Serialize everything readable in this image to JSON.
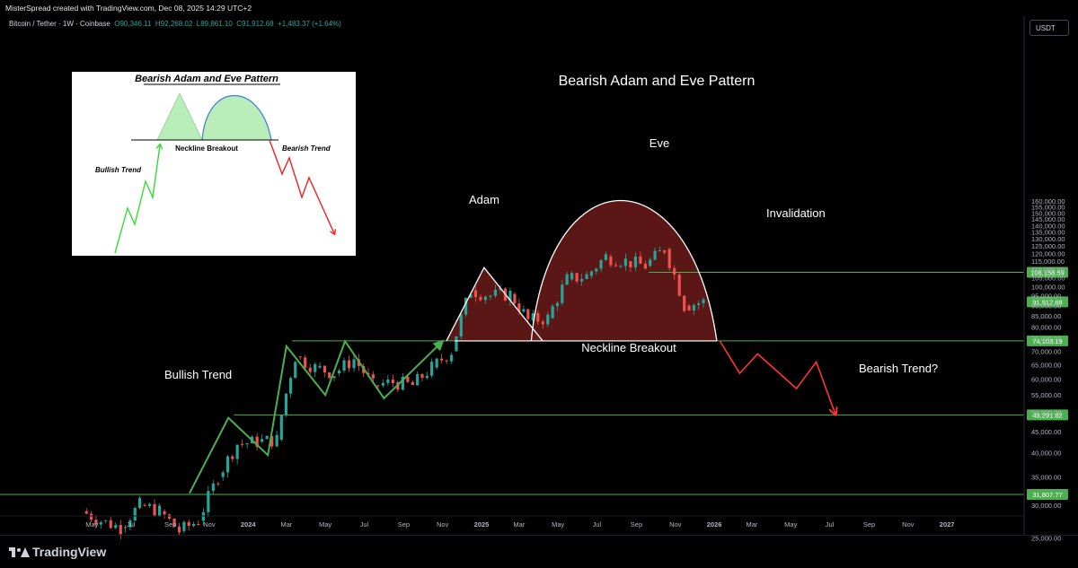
{
  "header": {
    "credit": "MisterSpread created with TradingView.com, Dec 08, 2025 14:29 UTC+2",
    "symbol": "Bitcoin / Tether · 1W · Coinbase",
    "open": "O90,346.11",
    "high": "H92,268.02",
    "low": "L89,861.10",
    "close": "C91,912.68",
    "change": "+1,483.37 (+1.64%)",
    "currency": "USDT"
  },
  "footer": {
    "brand": "TradingView"
  },
  "colors": {
    "background": "#000000",
    "bull": "#26a69a",
    "bear": "#ef5350",
    "green_line": "#4caf50",
    "pattern_fill": "#6b1a1a",
    "label_green": "#4caf50",
    "arrow_red": "#ff3333"
  },
  "chart_data": {
    "type": "line",
    "title": "Bearish Adam and Eve Pattern",
    "y_axis": {
      "ticks": [
        "160,000.00",
        "155,000.00",
        "150,000.00",
        "145,000.00",
        "140,000.00",
        "135,000.00",
        "130,000.00",
        "125,000.00",
        "120,000.00",
        "115,000.00",
        "110,000.00",
        "105,000.00",
        "100,000.00",
        "95,000.00",
        "90,000.00",
        "85,000.00",
        "80,000.00",
        "75,000.00",
        "70,000.00",
        "65,000.00",
        "60,000.00",
        "55,000.00",
        "50,000.00",
        "45,000.00",
        "40,000.00",
        "35,000.00",
        "30,000.00",
        "25,000.00"
      ],
      "tick_values": [
        160000,
        155000,
        150000,
        145000,
        140000,
        135000,
        130000,
        125000,
        120000,
        115000,
        110000,
        105000,
        100000,
        95000,
        90000,
        85000,
        80000,
        75000,
        70000,
        65000,
        60000,
        55000,
        50000,
        45000,
        40000,
        35000,
        30000,
        25000
      ],
      "log_scale": true
    },
    "x_axis": {
      "ticks": [
        "May",
        "Jul",
        "Sep",
        "Nov",
        "2024",
        "Mar",
        "May",
        "Jul",
        "Sep",
        "Nov",
        "2025",
        "Mar",
        "May",
        "Jul",
        "Sep",
        "Nov",
        "2026",
        "Mar",
        "May",
        "Jul",
        "Sep",
        "Nov",
        "2027"
      ],
      "tick_dates": [
        "2023-05",
        "2023-07",
        "2023-09",
        "2023-11",
        "2024-01",
        "2024-03",
        "2024-05",
        "2024-07",
        "2024-09",
        "2024-11",
        "2025-01",
        "2025-03",
        "2025-05",
        "2025-07",
        "2025-09",
        "2025-11",
        "2026-01",
        "2026-03",
        "2026-05",
        "2026-07",
        "2026-09",
        "2026-11",
        "2027-01"
      ]
    },
    "levels": [
      {
        "label": "108,158.59",
        "value": 108158.59
      },
      {
        "label": "91,912.68",
        "value": 91912.68
      },
      {
        "label": "74,103.19",
        "value": 74103.19
      },
      {
        "label": "49,291.82",
        "value": 49291.82
      },
      {
        "label": "31,807.77",
        "value": 31807.77
      }
    ],
    "annotations": {
      "adam": "Adam",
      "eve": "Eve",
      "invalidation": "Invalidation",
      "neckline": "Neckline Breakout",
      "bullish": "Bullish Trend",
      "bearish": "Bearish Trend?"
    },
    "weekly_close_path": [
      [
        "2023-04",
        29000
      ],
      [
        "2023-05",
        27500
      ],
      [
        "2023-06",
        26500
      ],
      [
        "2023-07",
        30000
      ],
      [
        "2023-08",
        29000
      ],
      [
        "2023-09",
        26000
      ],
      [
        "2023-10",
        27500
      ],
      [
        "2023-11",
        35000
      ],
      [
        "2023-12",
        42000
      ],
      [
        "2024-01",
        42500
      ],
      [
        "2024-02",
        43000
      ],
      [
        "2024-03",
        68000
      ],
      [
        "2024-04",
        64000
      ],
      [
        "2024-05",
        62000
      ],
      [
        "2024-06",
        67000
      ],
      [
        "2024-07",
        58000
      ],
      [
        "2024-08",
        59000
      ],
      [
        "2024-09",
        58000
      ],
      [
        "2024-10",
        64000
      ],
      [
        "2024-11",
        70000
      ],
      [
        "2024-12",
        98000
      ],
      [
        "2025-01",
        95000
      ],
      [
        "2025-02",
        96000
      ],
      [
        "2025-03",
        83000
      ],
      [
        "2025-04",
        84000
      ],
      [
        "2025-05",
        104000
      ],
      [
        "2025-06",
        106000
      ],
      [
        "2025-07",
        118000
      ],
      [
        "2025-08",
        115000
      ],
      [
        "2025-09",
        112000
      ],
      [
        "2025-10",
        123000
      ],
      [
        "2025-11",
        90000
      ],
      [
        "2025-12",
        91912.68
      ]
    ],
    "bullish_path": [
      [
        "2023-10",
        32000
      ],
      [
        "2023-12",
        48500
      ],
      [
        "2024-02",
        39500
      ],
      [
        "2024-03",
        72000
      ],
      [
        "2024-05",
        55000
      ],
      [
        "2024-06",
        74000
      ],
      [
        "2024-08",
        54000
      ],
      [
        "2024-11",
        74000
      ]
    ],
    "bearish_projection": [
      [
        "2026-01",
        74000
      ],
      [
        "2026-02",
        62000
      ],
      [
        "2026-03",
        69000
      ],
      [
        "2026-05",
        57000
      ],
      [
        "2026-06",
        66000
      ],
      [
        "2026-07",
        49500
      ]
    ],
    "adam_peak": [
      "2025-01-05",
      111000
    ],
    "eve_peak": [
      "2025-09-01",
      128000
    ]
  },
  "inset": {
    "title": "Bearish Adam and Eve Pattern",
    "neckline": "Neckline Breakout",
    "bearish": "Bearish Trend",
    "bullish": "Bullish Trend"
  }
}
